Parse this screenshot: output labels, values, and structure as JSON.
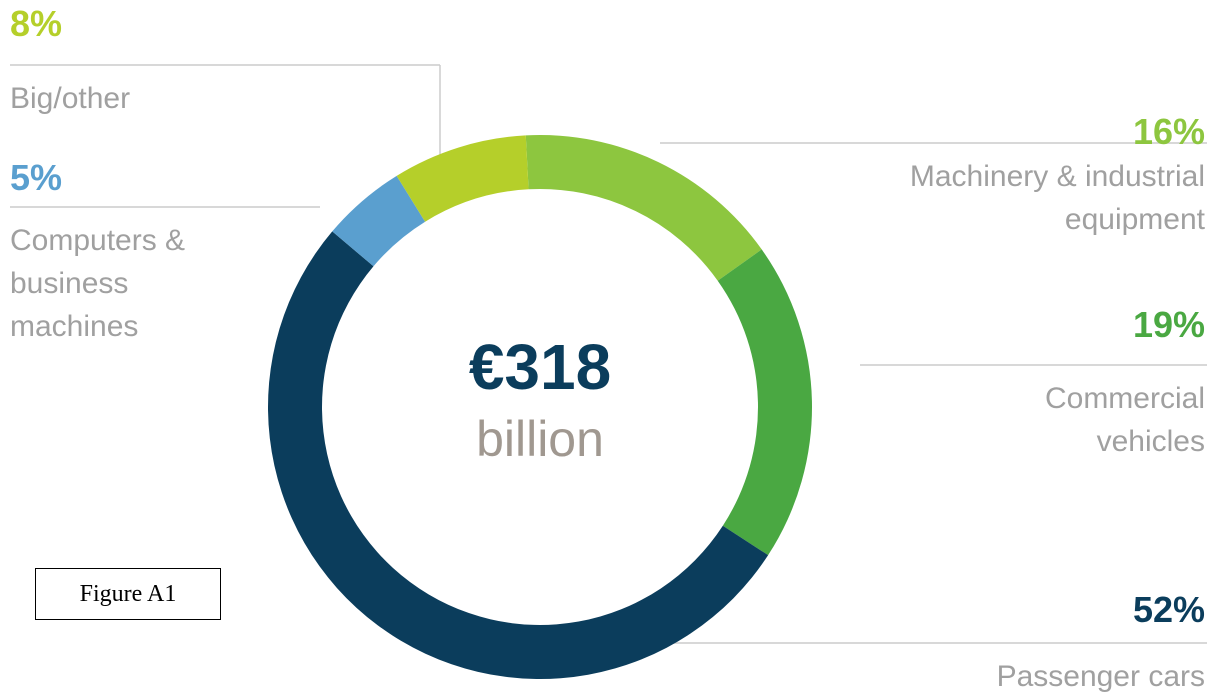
{
  "chart_data": {
    "type": "donut",
    "center_value": "€318",
    "center_label": "billion",
    "categories": [
      "Machinery & industrial equipment",
      "Commercial vehicles",
      "Passenger cars",
      "Computers & business machines",
      "Big/other"
    ],
    "values": [
      16,
      19,
      52,
      5,
      8
    ],
    "value_labels": [
      "16%",
      "19%",
      "52%",
      "5%",
      "8%"
    ],
    "colors": [
      "#8dc63f",
      "#4aa842",
      "#0b3d5c",
      "#5a9fcf",
      "#b5cf2a"
    ],
    "note": "Figure A1"
  }
}
